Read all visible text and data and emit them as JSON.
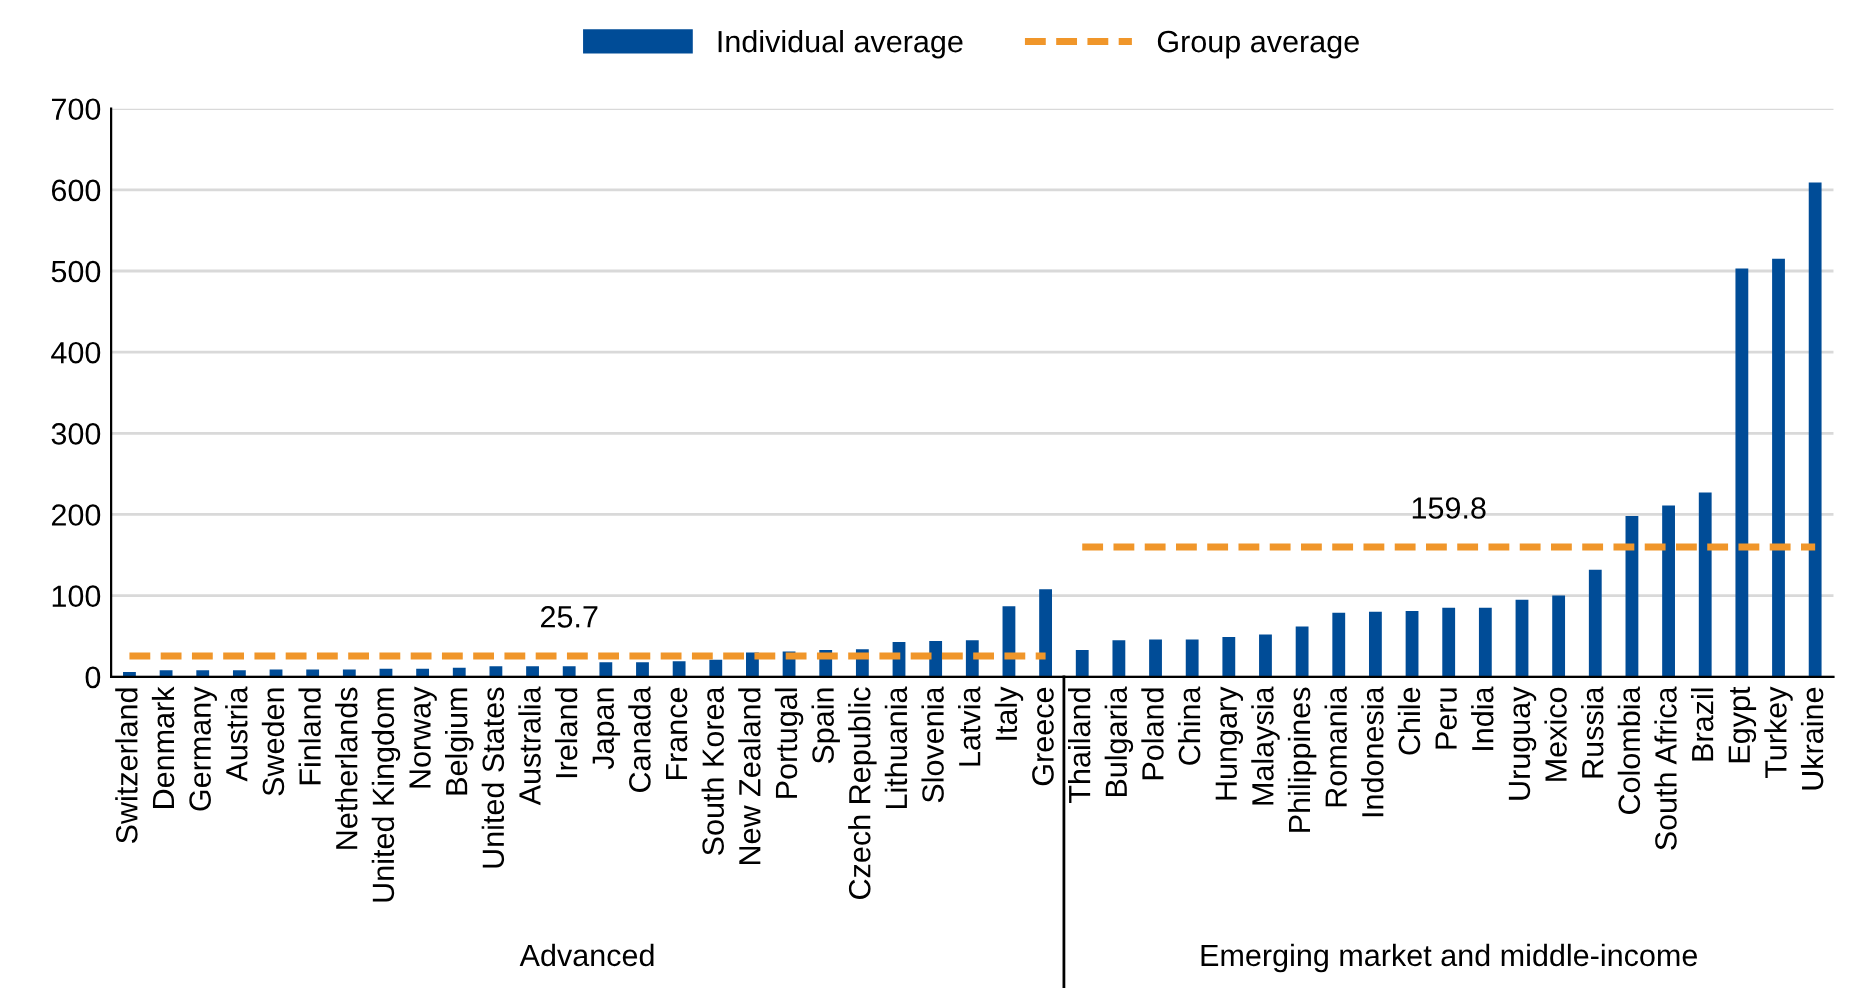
{
  "chart_data": {
    "type": "bar",
    "categories": [
      "Switzerland",
      "Denmark",
      "Germany",
      "Austria",
      "Sweden",
      "Finland",
      "Netherlands",
      "United Kingdom",
      "Norway",
      "Belgium",
      "United States",
      "Australia",
      "Ireland",
      "Japan",
      "Canada",
      "France",
      "South Korea",
      "New Zealand",
      "Portugal",
      "Spain",
      "Czech Republic",
      "Lithuania",
      "Slovenia",
      "Latvia",
      "Italy",
      "Greece",
      "Thailand",
      "Bulgaria",
      "Poland",
      "China",
      "Hungary",
      "Malaysia",
      "Philippines",
      "Romania",
      "Indonesia",
      "Chile",
      "Peru",
      "India",
      "Uruguay",
      "Mexico",
      "Russia",
      "Colombia",
      "South Africa",
      "Brazil",
      "Egypt",
      "Turkey",
      "Ukraine"
    ],
    "series": [
      {
        "name": "Individual average",
        "color": "#004c97",
        "values": [
          6,
          8,
          8,
          8,
          9,
          9,
          9,
          10,
          10,
          11,
          13,
          13,
          13,
          18,
          18,
          19,
          21,
          30,
          31,
          33,
          34,
          43,
          44,
          45,
          87,
          108,
          33,
          45,
          46,
          46,
          49,
          52,
          62,
          79,
          80,
          81,
          85,
          85,
          95,
          100,
          132,
          198,
          211,
          227,
          503,
          515,
          609
        ]
      },
      {
        "name": "Group average",
        "type": "line",
        "color": "#f0962a",
        "line_style": "dashed",
        "values": [
          25.7,
          25.7,
          25.7,
          25.7,
          25.7,
          25.7,
          25.7,
          25.7,
          25.7,
          25.7,
          25.7,
          25.7,
          25.7,
          25.7,
          25.7,
          25.7,
          25.7,
          25.7,
          25.7,
          25.7,
          25.7,
          25.7,
          25.7,
          25.7,
          25.7,
          25.7,
          159.8,
          159.8,
          159.8,
          159.8,
          159.8,
          159.8,
          159.8,
          159.8,
          159.8,
          159.8,
          159.8,
          159.8,
          159.8,
          159.8,
          159.8,
          159.8,
          159.8,
          159.8,
          159.8,
          159.8,
          159.8
        ]
      }
    ],
    "annotations": [
      {
        "text": "25.7",
        "x": "Ireland",
        "y": 25.7
      },
      {
        "text": "159.8",
        "x": "Peru",
        "y": 159.8
      },
      "Advanced",
      "Emerging market and middle-income"
    ],
    "ylim": [
      0,
      700
    ],
    "yticks": [
      0,
      100,
      200,
      300,
      400,
      500,
      600,
      700
    ],
    "grid": "y",
    "legend": "top"
  }
}
